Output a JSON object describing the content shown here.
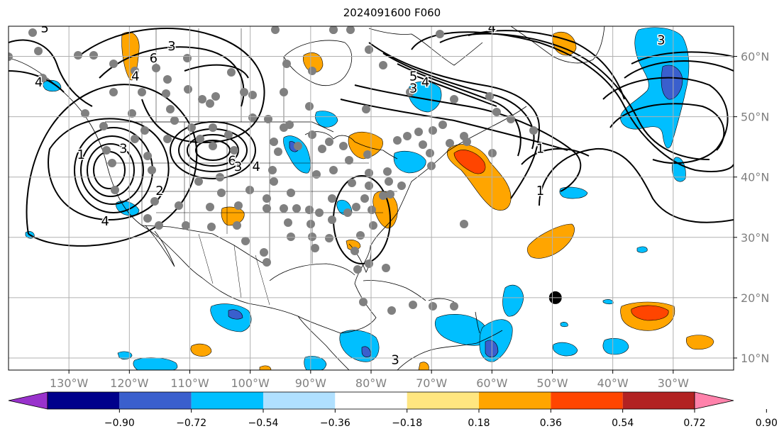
{
  "title": "2024091600 F060",
  "map": {
    "lon_range": [
      -140,
      -20
    ],
    "lat_range": [
      8,
      65
    ],
    "lon_ticks": [
      {
        "value": -130,
        "label": "130°W"
      },
      {
        "value": -120,
        "label": "120°W"
      },
      {
        "value": -110,
        "label": "110°W"
      },
      {
        "value": -100,
        "label": "100°W"
      },
      {
        "value": -90,
        "label": "90°W"
      },
      {
        "value": -80,
        "label": "80°W"
      },
      {
        "value": -70,
        "label": "70°W"
      },
      {
        "value": -60,
        "label": "60°W"
      },
      {
        "value": -50,
        "label": "50°W"
      },
      {
        "value": -40,
        "label": "40°W"
      },
      {
        "value": -30,
        "label": "30°W"
      }
    ],
    "lat_ticks": [
      {
        "value": 10,
        "label": "10°N"
      },
      {
        "value": 20,
        "label": "20°N"
      },
      {
        "value": 30,
        "label": "30°N"
      },
      {
        "value": 40,
        "label": "40°N"
      },
      {
        "value": 50,
        "label": "50°N"
      },
      {
        "value": 60,
        "label": "60°N"
      }
    ],
    "marker": {
      "lon": -49.5,
      "lat": 20,
      "label": "storm-center-marker"
    },
    "contour_labels": [
      {
        "text": "1",
        "lon": -128,
        "lat": 43
      },
      {
        "text": "2",
        "lon": -115,
        "lat": 37
      },
      {
        "text": "3",
        "lon": -121,
        "lat": 44
      },
      {
        "text": "4",
        "lon": -124,
        "lat": 32
      },
      {
        "text": "6",
        "lon": -103,
        "lat": 42
      },
      {
        "text": "4",
        "lon": -99,
        "lat": 41
      },
      {
        "text": "3",
        "lon": -102,
        "lat": 41
      },
      {
        "text": "6",
        "lon": -116,
        "lat": 59
      },
      {
        "text": "4",
        "lon": -119,
        "lat": 56
      },
      {
        "text": "3",
        "lon": -113,
        "lat": 61
      },
      {
        "text": "3",
        "lon": -76,
        "lat": 9
      },
      {
        "text": "5",
        "lon": -73,
        "lat": 56
      },
      {
        "text": "4",
        "lon": -71,
        "lat": 55
      },
      {
        "text": "3",
        "lon": -73,
        "lat": 54
      },
      {
        "text": "4",
        "lon": -60,
        "lat": 64
      },
      {
        "text": "1",
        "lon": -52,
        "lat": 44
      },
      {
        "text": "1",
        "lon": -52,
        "lat": 37
      },
      {
        "text": "3",
        "lon": -32,
        "lat": 62
      },
      {
        "text": "5",
        "lon": -134,
        "lat": 64
      },
      {
        "text": "4",
        "lon": -135,
        "lat": 55
      }
    ]
  },
  "colorbar": {
    "colors": [
      "#9932cc",
      "#00008b",
      "#3a5fcd",
      "#00bfff",
      "#b0e0ff",
      "#ffffff",
      "#ffe680",
      "#ffa500",
      "#ff4500",
      "#b22222",
      "#ff82ab"
    ],
    "under_color": "#9932cc",
    "over_color": "#ff82ab",
    "tick_labels": [
      "−0.90",
      "−0.72",
      "−0.54",
      "−0.36",
      "−0.18",
      "0.18",
      "0.36",
      "0.54",
      "0.72",
      "0.90"
    ]
  },
  "colors": {
    "contour": "#000000",
    "station_dot": "#808080",
    "grid": "#b0b0b0",
    "tick_label": "#808080"
  }
}
